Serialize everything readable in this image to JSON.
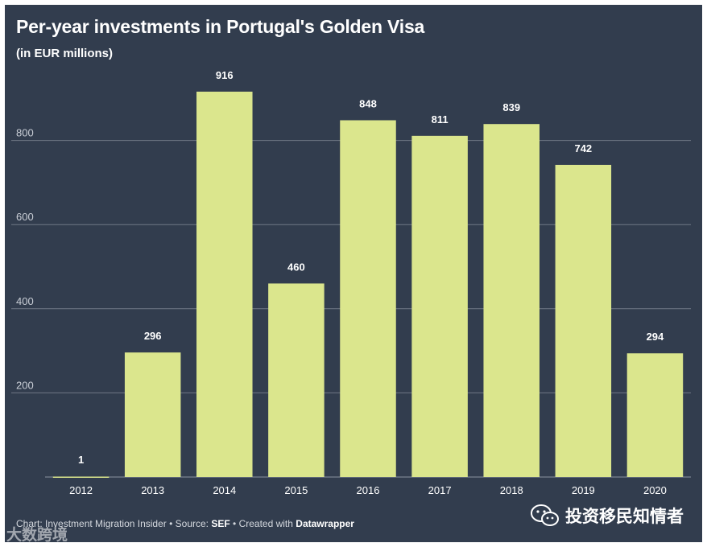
{
  "title": "Per-year investments in Portugal's Golden Visa",
  "subtitle": "(in EUR millions)",
  "footer": {
    "chart_label": "Chart:",
    "chart_source": "Investment Migration Insider",
    "source_label": "• Source:",
    "source": "SEF",
    "created_label": "• Created with",
    "tool": "Datawrapper"
  },
  "watermarks": {
    "left_text": "大数跨境",
    "right_text": "投资移民知情者",
    "right_icon": "wechat-icon"
  },
  "colors": {
    "background": "#323d4e",
    "bar": "#dbe68d",
    "text": "#ffffff",
    "tick_text": "#c9ced6",
    "grid": "#6f7886"
  },
  "chart_data": {
    "type": "bar",
    "title": "Per-year investments in Portugal's Golden Visa",
    "subtitle": "(in EUR millions)",
    "xlabel": "",
    "ylabel": "",
    "categories": [
      "2012",
      "2013",
      "2014",
      "2015",
      "2016",
      "2017",
      "2018",
      "2019",
      "2020"
    ],
    "values": [
      1,
      296,
      916,
      460,
      848,
      811,
      839,
      742,
      294
    ],
    "yticks": [
      200,
      400,
      600,
      800
    ],
    "ylim": [
      0,
      1000
    ],
    "grid": true,
    "data_labels": true
  }
}
